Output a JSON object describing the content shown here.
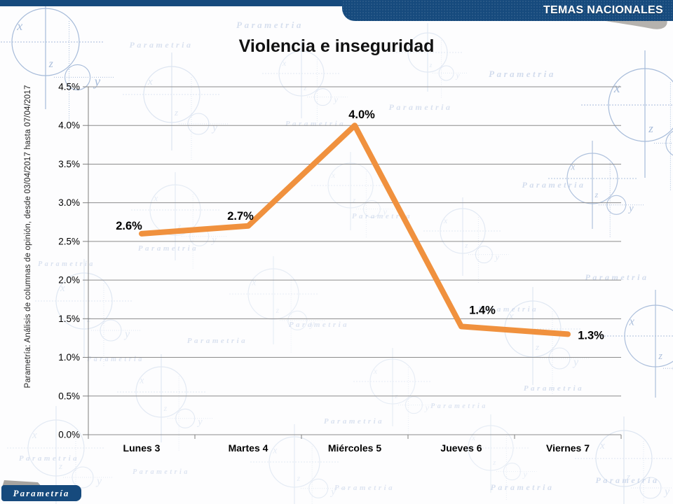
{
  "header": {
    "banner": "TEMAS NACIONALES"
  },
  "title": "Violencia e inseguridad",
  "sidebar_note": "Parametría: Análisis de columnas de opinión, desde 03/04/2017 hasta 07/04/2017",
  "logo": {
    "text": "Parametría"
  },
  "watermark": {
    "text": "Parametria",
    "letters": [
      "x",
      "y",
      "z"
    ]
  },
  "chart_data": {
    "type": "line",
    "title": "Violencia e inseguridad",
    "categories": [
      "Lunes 3",
      "Martes 4",
      "Miércoles 5",
      "Jueves 6",
      "Viernes 7"
    ],
    "series": [
      {
        "name": "Violencia e inseguridad",
        "values": [
          2.6,
          2.7,
          4.0,
          1.4,
          1.3
        ]
      }
    ],
    "data_labels": [
      "2.6%",
      "2.7%",
      "4.0%",
      "1.4%",
      "1.3%"
    ],
    "y_tick_labels": [
      "0.0%",
      "0.5%",
      "1.0%",
      "1.5%",
      "2.0%",
      "2.5%",
      "3.0%",
      "3.5%",
      "4.0%",
      "4.5%"
    ],
    "ylim": [
      0,
      4.5
    ],
    "y_step": 0.5,
    "xlabel": "",
    "ylabel": "",
    "grid": true,
    "legend": "none",
    "line_color": "#F0913E",
    "grid_color": "#8c8c8c",
    "axis_color": "#7f7f7f",
    "label_color": "#000000"
  }
}
